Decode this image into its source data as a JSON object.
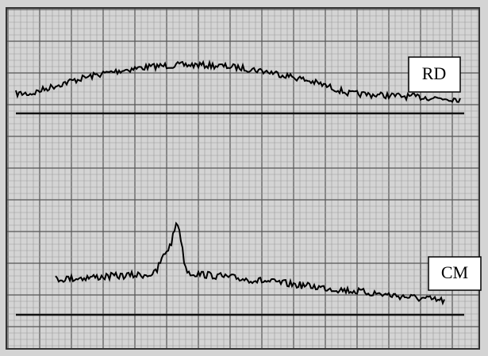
{
  "traces": [
    {
      "label": "RD"
    },
    {
      "label": "CM"
    }
  ]
}
